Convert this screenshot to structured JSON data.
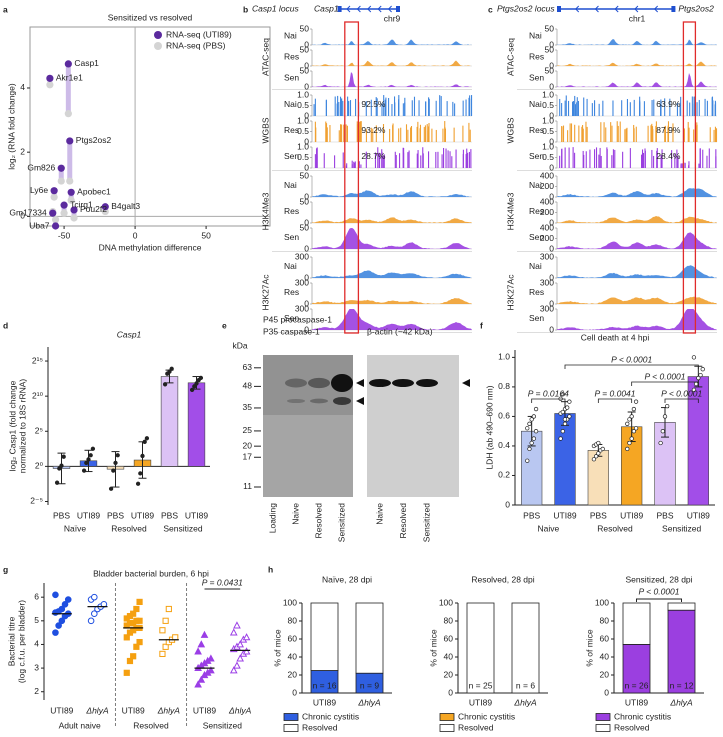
{
  "panel_labels": [
    "a",
    "b",
    "c",
    "d",
    "e",
    "f",
    "g",
    "h"
  ],
  "chart_data": [
    {
      "type": "scatter",
      "title": "Sensitized vs resolved",
      "xlabel": "DNA methylation difference",
      "ylabel": "log₂ (RNA fold change)",
      "xlim": [
        -74,
        95
      ],
      "ylim": [
        -0.3,
        5.9
      ],
      "xticks": [
        -50,
        0,
        50
      ],
      "yticks": [
        0,
        2,
        4
      ],
      "x": [
        -60,
        -47,
        -46,
        -52,
        -57,
        -45,
        -58,
        -50,
        -43,
        -21,
        -56
      ],
      "point_labels": [
        "Akr1e1",
        "Casp1",
        "Ptgs2os2",
        "Gm826",
        "Ly6e",
        "Apobec1",
        "Gm17334",
        "Tcirg1",
        "Pou2f2",
        "B4galt3",
        "Uba7"
      ],
      "series": [
        {
          "name": "RNA-seq (UTI89)",
          "color": "#5b2a9e",
          "values": [
            4.3,
            4.75,
            2.35,
            1.5,
            0.8,
            0.75,
            0.1,
            0.35,
            0.2,
            0.3,
            -0.3
          ]
        },
        {
          "name": "RNA-seq (PBS)",
          "color": "#d4d4d4",
          "values": [
            4.1,
            3.2,
            1.1,
            1.1,
            0.6,
            0.5,
            0.15,
            0.1,
            -0.05,
            0.15,
            -0.1
          ]
        }
      ],
      "connector_color": "#cdbbe8",
      "legend": "upper right"
    },
    {
      "type": "tracks",
      "locus_label": "Casp1 locus",
      "gene": "Casp1",
      "chromosome": "chr9",
      "conditions": [
        "Nai",
        "Res",
        "Sen"
      ],
      "condition_colors": [
        "#3f86de",
        "#f0a030",
        "#9a3ee0"
      ],
      "highlight_color": "#e02b2b",
      "assays": [
        {
          "name": "ATAC-seq",
          "yticks": [
            0,
            50
          ]
        },
        {
          "name": "WGBS",
          "yticks": [
            0,
            0.5,
            {
              "value": 1,
              "label": "1.0"
            }
          ],
          "methylation": {
            "values": [
              92.5,
              93.2,
              28.7
            ],
            "value_labels": [
              "92.5%",
              "93.2%",
              "28.7%"
            ]
          }
        },
        {
          "name": "H3K4Me3",
          "yticks": [
            0,
            50
          ]
        },
        {
          "name": "H3K27Ac",
          "yticks": [
            0,
            300
          ]
        }
      ]
    },
    {
      "type": "tracks",
      "locus_label": "Ptgs2os2 locus",
      "gene": "Ptgs2os2",
      "chromosome": "chr1",
      "conditions": [
        "Nai",
        "Res",
        "Sen"
      ],
      "condition_colors": [
        "#3f86de",
        "#f0a030",
        "#9a3ee0"
      ],
      "highlight_color": "#e02b2b",
      "assays": [
        {
          "name": "ATAC-seq",
          "yticks": [
            0,
            50
          ]
        },
        {
          "name": "WGBS",
          "yticks": [
            0,
            0.5,
            {
              "value": 1,
              "label": "1.0"
            }
          ],
          "methylation": {
            "values": [
              63.9,
              87.9,
              28.4
            ],
            "value_labels": [
              "63.9%",
              "87.9%",
              "28.4%"
            ]
          }
        },
        {
          "name": "H3K4Me3",
          "yticks": [
            0,
            200,
            400
          ]
        },
        {
          "name": "H3K27Ac",
          "yticks": [
            0,
            300
          ]
        }
      ]
    },
    {
      "type": "bar",
      "title": "Casp1",
      "ylabel": [
        "log₂ Casp1 (fold change",
        "normalized to 18S rRNA)"
      ],
      "log_scale": true,
      "categories": [
        "PBS",
        "UTI89",
        "PBS",
        "UTI89",
        "PBS",
        "UTI89"
      ],
      "groups": [
        "Naïve",
        "Resolved",
        "Sensitized"
      ],
      "colors": [
        "#b9c7f1",
        "#3b63e6",
        "#f8dfb8",
        "#f5a623",
        "#dcc2f5",
        "#a24ee8"
      ],
      "values": [
        0.81,
        1.74,
        0.76,
        1.87,
        7132,
        3822
      ],
      "error_ranges": [
        [
          0.18,
          3.7
        ],
        [
          0.6,
          4.9
        ],
        [
          0.13,
          4.3
        ],
        [
          0.31,
          11.3
        ],
        [
          3800,
          13400
        ],
        [
          2050,
          7100
        ]
      ],
      "points": [
        [
          0.2,
          0.81,
          1.07,
          2.6
        ],
        [
          0.66,
          1.41,
          2,
          3,
          5.7
        ],
        [
          0.11,
          0.66,
          1.41,
          3
        ],
        [
          0.18,
          0.5,
          2.8,
          11.3,
          16
        ],
        [
          3300,
          9400,
          11600,
          15300
        ],
        [
          1900,
          2700,
          3600,
          5000,
          6200
        ]
      ],
      "ylim": [
        0.0221,
        131072
      ],
      "yticks": [
        {
          "value": 0.03125,
          "label": "2⁻⁵"
        },
        {
          "value": 1,
          "label": "2⁰"
        },
        {
          "value": 32,
          "label": "2⁵"
        },
        {
          "value": 1024,
          "label": "2¹⁰"
        },
        {
          "value": 32768,
          "label": "2¹⁵"
        }
      ]
    },
    {
      "type": "blot",
      "left_title": [
        "P45 procaspase-1",
        "P35 caspase-1"
      ],
      "right_title": "β-actin (~42 kDa)",
      "unit": "kDa",
      "markers": [
        63,
        48,
        35,
        25,
        20,
        17,
        11
      ],
      "ylim": [
        9.5,
        76
      ],
      "log_scale": true,
      "left_lanes": [
        "Loading",
        "Naive",
        "Resolved",
        "Sensitized"
      ],
      "right_lanes": [
        "Naive",
        "Resolved",
        "Sensitized"
      ]
    },
    {
      "type": "bar",
      "title": "Cell death at 4 hpi",
      "ylabel": "LDH (ab 490–690 nm)",
      "categories": [
        "PBS",
        "UTI89",
        "PBS",
        "UTI89",
        "PBS",
        "UTI89"
      ],
      "groups": [
        "Naive",
        "Resolved",
        "Sensitized"
      ],
      "colors": [
        "#b9c7f1",
        "#3b63e6",
        "#f8dfb8",
        "#f5a623",
        "#dcc2f5",
        "#a24ee8"
      ],
      "values": [
        0.5,
        0.62,
        0.37,
        0.53,
        0.56,
        0.87
      ],
      "errors": [
        0.1,
        0.08,
        0.04,
        0.1,
        0.1,
        0.07
      ],
      "points": [
        [
          0.3,
          0.38,
          0.42,
          0.45,
          0.5,
          0.52,
          0.55,
          0.58,
          0.6,
          0.65
        ],
        [
          0.45,
          0.5,
          0.55,
          0.58,
          0.6,
          0.62,
          0.63,
          0.65,
          0.66,
          0.7,
          0.72,
          0.75,
          0.58
        ],
        [
          0.31,
          0.33,
          0.35,
          0.37,
          0.38,
          0.4,
          0.41,
          0.42
        ],
        [
          0.38,
          0.42,
          0.45,
          0.5,
          0.52,
          0.55,
          0.58,
          0.6,
          0.65,
          0.7
        ],
        [
          0.42,
          0.5,
          0.6,
          0.67
        ],
        [
          0.78,
          0.82,
          0.86,
          0.88,
          0.92,
          1.0
        ]
      ],
      "ylim": [
        0,
        1.05
      ],
      "yticks": [
        0,
        0.2,
        0.4,
        0.6,
        0.8,
        {
          "value": 1,
          "label": "1.0"
        }
      ],
      "p_labels": [
        "P = 0.0164",
        "P = 0.0041",
        "P < 0.0001",
        "P < 0.0001",
        "P < 0.0001"
      ]
    },
    {
      "type": "strip",
      "title": "Bladder bacterial burden, 6 hpi",
      "ylabel": [
        "Bacterial titre",
        "(log c.f.u. per bladder)"
      ],
      "categories": [
        "UTI89",
        "ΔhlyA",
        "UTI89",
        "ΔhlyA",
        "UTI89",
        "ΔhlyA"
      ],
      "groups": [
        "Adult naive",
        "Resolved",
        "Sensitized"
      ],
      "colors": [
        "#1f4fe0",
        "#1f4fe0",
        "#f5a010",
        "#f5a010",
        "#9b3ee6",
        "#9b3ee6"
      ],
      "markers": [
        "circle",
        "circle-open",
        "square",
        "square-open",
        "triangle",
        "triangle-open"
      ],
      "means": [
        5.3,
        5.6,
        4.7,
        4.2,
        3.0,
        3.75
      ],
      "points": [
        [
          4.5,
          4.8,
          5.0,
          5.2,
          5.3,
          5.35,
          5.4,
          5.5,
          5.7,
          5.9,
          6.1
        ],
        [
          5.0,
          5.3,
          5.5,
          5.6,
          5.7,
          5.9,
          6.0
        ],
        [
          2.8,
          3.3,
          3.5,
          3.9,
          4.1,
          4.3,
          4.5,
          4.6,
          4.7,
          4.7,
          4.8,
          4.9,
          4.9,
          5.0,
          5.0,
          5.1,
          5.2,
          5.3,
          5.5,
          5.8
        ],
        [
          3.6,
          3.9,
          4.1,
          4.2,
          4.3,
          4.6,
          5.0,
          5.5
        ],
        [
          2.3,
          2.5,
          2.7,
          2.8,
          2.9,
          3.0,
          3.1,
          3.2,
          3.3,
          3.4,
          3.7,
          4.0,
          4.4
        ],
        [
          2.9,
          3.1,
          3.4,
          3.6,
          3.7,
          3.8,
          3.9,
          4.0,
          4.2,
          4.3,
          4.5,
          4.8
        ]
      ],
      "ylim": [
        1.65,
        6.6
      ],
      "yticks": [
        2,
        3,
        4,
        5,
        6
      ],
      "p_label": "P = 0.0431"
    },
    {
      "type": "stacked_bar",
      "title": "Naïve, 28 dpi",
      "ylabel": "% of mice",
      "categories": [
        "UTI89",
        "ΔhlyA"
      ],
      "series": [
        {
          "name": "Chronic cystitis",
          "color": "#2f5fe0",
          "values": [
            25,
            22
          ]
        },
        {
          "name": "Resolved",
          "color": "#ffffff",
          "values": [
            75,
            78
          ]
        }
      ],
      "n_labels": [
        "n = 16",
        "n = 9"
      ],
      "ylim": [
        0,
        100
      ],
      "yticks": [
        0,
        20,
        40,
        60,
        80,
        100
      ]
    },
    {
      "type": "stacked_bar",
      "title": "Resolved, 28 dpi",
      "ylabel": "% of mice",
      "categories": [
        "UTI89",
        "ΔhlyA"
      ],
      "series": [
        {
          "name": "Chronic cystitis",
          "color": "#f5a623",
          "values": [
            0,
            0
          ]
        },
        {
          "name": "Resolved",
          "color": "#ffffff",
          "values": [
            100,
            100
          ]
        }
      ],
      "n_labels": [
        "n = 25",
        "n = 6"
      ],
      "ylim": [
        0,
        100
      ],
      "yticks": [
        0,
        20,
        40,
        60,
        80,
        100
      ]
    },
    {
      "type": "stacked_bar",
      "title": "Sensitized, 28 dpi",
      "ylabel": "% of mice",
      "categories": [
        "UTI89",
        "ΔhlyA"
      ],
      "series": [
        {
          "name": "Chronic cystitis",
          "color": "#9b3fe0",
          "values": [
            54,
            92
          ]
        },
        {
          "name": "Resolved",
          "color": "#ffffff",
          "values": [
            46,
            8
          ]
        }
      ],
      "n_labels": [
        "n = 26",
        "n = 12"
      ],
      "ylim": [
        0,
        100
      ],
      "yticks": [
        0,
        20,
        40,
        60,
        80,
        100
      ],
      "p_label": "P < 0.0001"
    }
  ]
}
